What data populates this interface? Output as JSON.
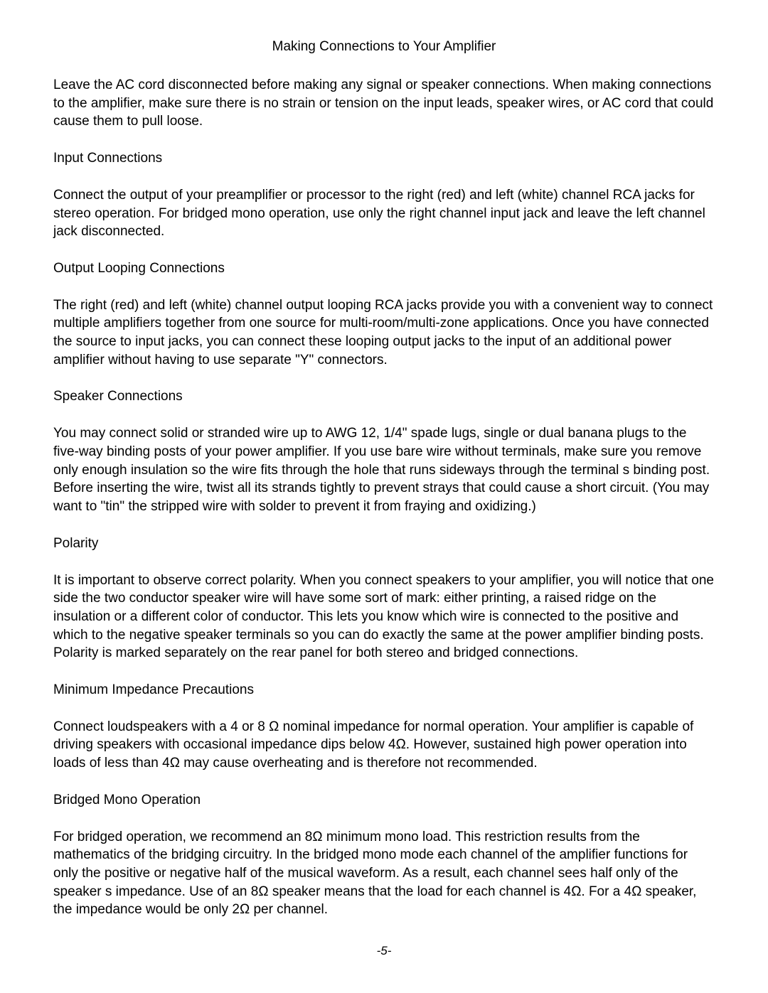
{
  "title": "Making Connections to Your Amplifier",
  "intro": "Leave the AC cord disconnected before making any signal or speaker connections.  When making connections to the amplifier, make sure there is no strain or tension on the input leads, speaker wires, or AC cord that could cause them to pull loose.",
  "sections": {
    "input": {
      "heading": "Input Connections",
      "body": "Connect the output of your preamplifier or processor to the right (red) and left (white) channel RCA jacks for stereo operation.  For bridged mono operation, use only the right channel input jack and leave the left channel jack disconnected."
    },
    "output_looping": {
      "heading": "Output Looping Connections",
      "body": "The right (red) and left (white) channel output looping RCA jacks provide you with a convenient way to connect multiple amplifiers together from one source for multi-room/multi-zone applications.  Once you have connected the source to input jacks, you can connect these looping output jacks to the input of an additional power amplifier without having to use separate \"Y\" connectors."
    },
    "speaker": {
      "heading": "Speaker Connections",
      "body": "You may connect solid or stranded wire up to AWG 12, 1/4\" spade lugs, single or dual banana plugs to the five-way binding posts of your power amplifier.   If you use bare wire without terminals, make sure you remove only enough insulation so the wire fits through the hole that runs sideways through the terminal s binding post.  Before inserting the wire, twist all its strands tightly to prevent strays that could cause a short circuit.  (You may want to \"tin\" the stripped wire with solder to prevent it from fraying and oxidizing.)"
    },
    "polarity": {
      "heading": "Polarity",
      "body": "It is important to observe correct polarity.  When you connect speakers to your amplifier, you will notice that one side the two conductor speaker wire will have some sort of mark: either printing, a raised ridge on the insulation or a different color of conductor.  This lets you know which wire is connected to the positive and which to the negative speaker terminals so you can do exactly the same at the power amplifier binding posts.  Polarity is marked separately on the rear panel for both stereo and bridged connections."
    },
    "impedance": {
      "heading": "Minimum Impedance Precautions",
      "body": "Connect loudspeakers with a 4 or 8 Ω nominal impedance for normal operation.  Your amplifier is capable of driving speakers with occasional impedance dips below 4Ω. However, sustained high power operation into loads of less than 4Ω may cause overheating and is therefore not recommended."
    },
    "bridged": {
      "heading": "Bridged Mono Operation",
      "body": "For bridged operation, we recommend an 8Ω minimum mono load. This restriction results from the mathematics of the bridging circuitry.  In the bridged mono mode each channel of the amplifier functions for only the positive or negative half of the musical waveform.  As a result, each channel  sees  half only of the speaker s impedance.  Use of an 8Ω speaker means that the load for each channel is 4Ω. For a 4Ω speaker, the impedance would be only 2Ω per channel."
    }
  },
  "page_number": "-5-"
}
